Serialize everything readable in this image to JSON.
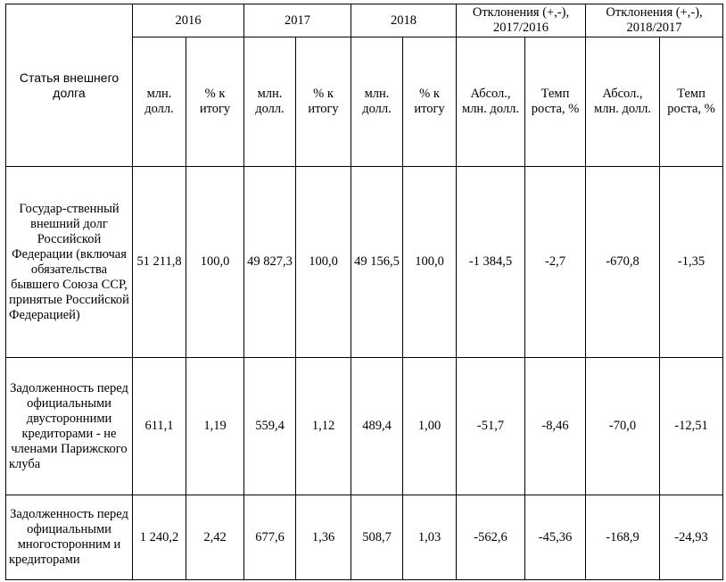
{
  "table": {
    "row_header": "Статья внешнего долга",
    "years": [
      "2016",
      "2017",
      "2018"
    ],
    "deviations": [
      "Отклонения (+,-), 2017/2016",
      "Отклонения (+,-), 2018/2017"
    ],
    "sub_headers": {
      "mln": "млн. долл.",
      "pct": "% к итогу",
      "abs": "Абсол., млн. долл.",
      "rate": "Темп роста, %"
    },
    "rows": [
      {
        "name": "Государ-ственный внешний долг Российской Федерации (включая обязательства бывшего Союза ССР, принятые Российской Федерацией)",
        "v2016": "51 211,8",
        "p2016": "100,0",
        "v2017": "49 827,3",
        "p2017": "100,0",
        "v2018": "49 156,5",
        "p2018": "100,0",
        "abs1": "-1 384,5",
        "rate1": "-2,7",
        "abs2": "-670,8",
        "rate2": "-1,35"
      },
      {
        "name": "Задолженность перед официальными двусторонними кредиторами - не членами Парижского клуба",
        "v2016": "611,1",
        "p2016": "1,19",
        "v2017": "559,4",
        "p2017": "1,12",
        "v2018": "489,4",
        "p2018": "1,00",
        "abs1": "-51,7",
        "rate1": "-8,46",
        "abs2": "-70,0",
        "rate2": "-12,51"
      },
      {
        "name": "Задолженность перед официальными многосторонним и кредиторами",
        "v2016": "1 240,2",
        "p2016": "2,42",
        "v2017": "677,6",
        "p2017": "1,36",
        "v2018": "508,7",
        "p2018": "1,03",
        "abs1": "-562,6",
        "rate1": "-45,36",
        "abs2": "-168,9",
        "rate2": "-24,93"
      }
    ]
  }
}
